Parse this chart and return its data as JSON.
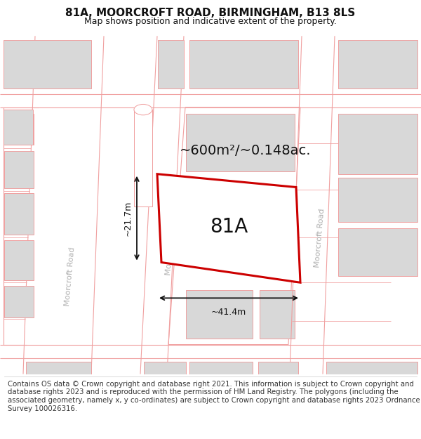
{
  "title_line1": "81A, MOORCROFT ROAD, BIRMINGHAM, B13 8LS",
  "title_line2": "Map shows position and indicative extent of the property.",
  "footer_text": "Contains OS data © Crown copyright and database right 2021. This information is subject to Crown copyright and database rights 2023 and is reproduced with the permission of HM Land Registry. The polygons (including the associated geometry, namely x, y co-ordinates) are subject to Crown copyright and database rights 2023 Ordnance Survey 100026316.",
  "area_label": "~600m²/~0.148ac.",
  "plot_label": "81A",
  "dim_width_label": "~41.4m",
  "dim_height_label": "~21.7m",
  "road_label": "Moorcroft Road",
  "map_bg": "#ffffff",
  "building_fill": "#d8d8d8",
  "building_outline": "#f0a0a0",
  "road_outline": "#f0a0a0",
  "road_fill": "#ffffff",
  "plot_fill": "#ffffff",
  "plot_outline": "#cc0000",
  "text_color": "#111111",
  "road_text_color": "#b0b0b0",
  "title_fontsize": 11,
  "subtitle_fontsize": 9,
  "footer_fontsize": 7.3,
  "plot_label_fontsize": 20,
  "area_fontsize": 14,
  "dim_fontsize": 9,
  "road_fontsize": 8
}
